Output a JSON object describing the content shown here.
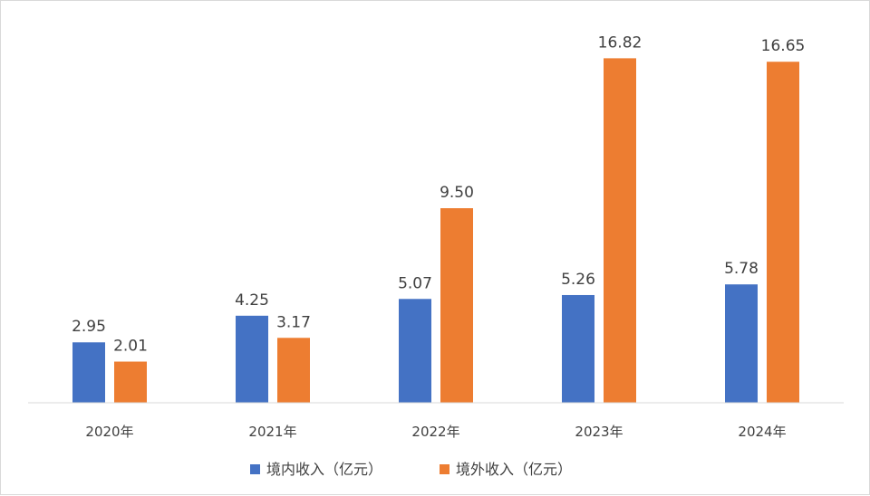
{
  "chart_data": {
    "type": "bar",
    "title": "",
    "xlabel": "",
    "ylabel": "",
    "categories": [
      "2020年",
      "2021年",
      "2022年",
      "2023年",
      "2024年"
    ],
    "series": [
      {
        "name": "境内收入（亿元）",
        "color": "#4472c4",
        "values": [
          2.95,
          4.25,
          5.07,
          5.26,
          5.78
        ],
        "labels": [
          "2.95",
          "4.25",
          "5.07",
          "5.26",
          "5.78"
        ]
      },
      {
        "name": "境外收入（亿元）",
        "color": "#ed7d31",
        "values": [
          2.01,
          3.17,
          9.5,
          16.82,
          16.65
        ],
        "labels": [
          "2.01",
          "3.17",
          "9.50",
          "16.82",
          "16.65"
        ]
      }
    ],
    "ylim": [
      0,
      17.5
    ],
    "grid": false,
    "legend": "bottom-center"
  }
}
